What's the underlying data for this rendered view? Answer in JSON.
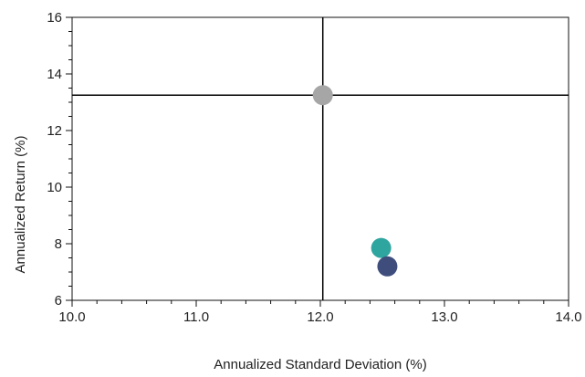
{
  "chart_data": {
    "type": "scatter",
    "title": "",
    "xlabel": "Annualized Standard Deviation (%)",
    "ylabel": "Annualized Return (%)",
    "xlim": [
      10.0,
      14.0
    ],
    "ylim": [
      6,
      16
    ],
    "x_ticks": [
      10.0,
      11.0,
      12.0,
      13.0,
      14.0
    ],
    "x_tick_labels": [
      "10.0",
      "11.0",
      "12.0",
      "13.0",
      "14.0"
    ],
    "y_ticks": [
      6,
      8,
      10,
      12,
      14,
      16
    ],
    "y_tick_labels": [
      "6",
      "8",
      "10",
      "12",
      "14",
      "16"
    ],
    "grid": false,
    "reference_lines": {
      "x": 12.02,
      "y": 13.25
    },
    "points": [
      {
        "x": 12.02,
        "y": 13.25,
        "color": "#a6a6a6"
      },
      {
        "x": 12.49,
        "y": 7.85,
        "color": "#2fa59f"
      },
      {
        "x": 12.54,
        "y": 7.2,
        "color": "#3e4d7b"
      }
    ]
  }
}
